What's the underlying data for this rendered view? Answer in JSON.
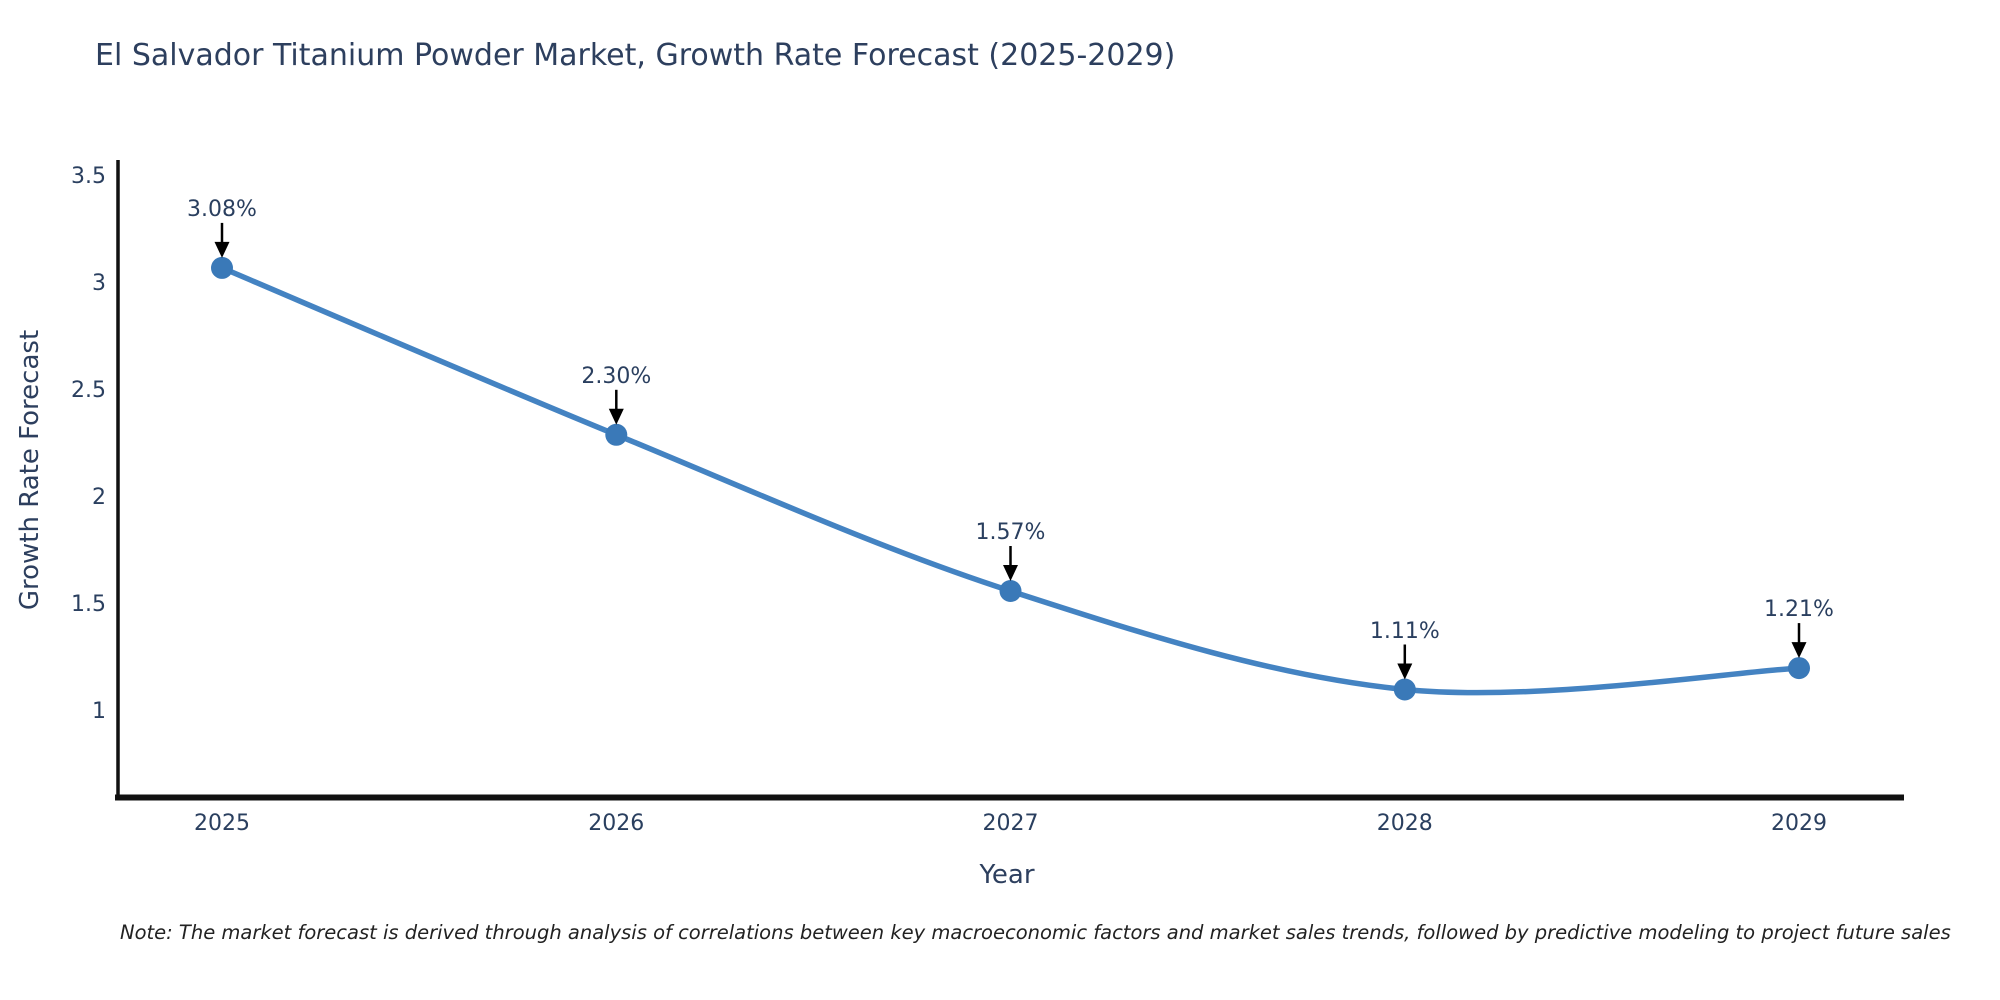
{
  "note": "Note: The market forecast is derived through analysis of correlations between key macroeconomic factors and market sales trends, followed by predictive modeling to project future sales",
  "chart_data": {
    "type": "line",
    "title": "El Salvador Titanium Powder Market, Growth Rate Forecast (2025-2029)",
    "xlabel": "Year",
    "ylabel": "Growth Rate Forecast",
    "x": [
      2025,
      2026,
      2027,
      2028,
      2029
    ],
    "values": [
      3.08,
      2.3,
      1.57,
      1.11,
      1.21
    ],
    "point_labels": [
      "3.08%",
      "2.30%",
      "1.57%",
      "1.11%",
      "1.21%"
    ],
    "yticks": [
      3.5,
      3,
      2.5,
      2,
      1.5,
      1
    ],
    "ylim": [
      0.6,
      3.6
    ],
    "xlim": [
      2024.73,
      2029.27
    ],
    "line_shape": "spline",
    "grid": false,
    "legend": "none",
    "line_color": "#4483c2",
    "marker_color": "#3a79b8",
    "axis_color": "#111111",
    "text_color": "#2a3f5f",
    "annotation_arrow_color": "#000000"
  }
}
